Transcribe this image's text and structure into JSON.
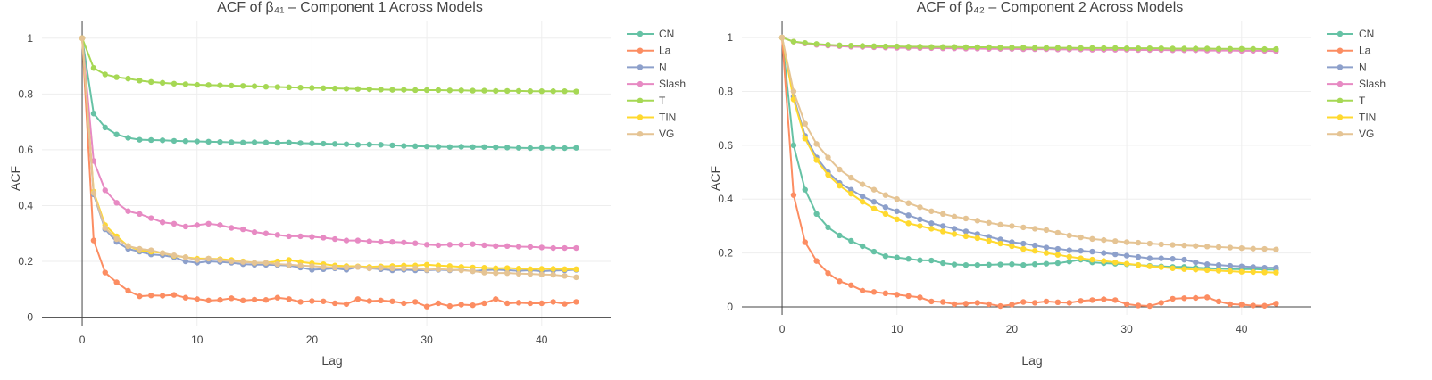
{
  "colors": {
    "CN": "#66c2a5",
    "La": "#fc8d62",
    "N": "#8da0cb",
    "Slash": "#e78ac3",
    "T": "#a6d854",
    "TIN": "#ffd92f",
    "VG": "#e5c494"
  },
  "chart_data": [
    {
      "type": "line",
      "title": "ACF of β₄₁ – Component 1 Across Models",
      "xlabel": "Lag",
      "ylabel": "ACF",
      "xlim": [
        -3.5,
        46
      ],
      "ylim": [
        -0.03,
        1.06
      ],
      "xticks": [
        0,
        10,
        20,
        30,
        40
      ],
      "yticks": [
        0,
        0.2,
        0.4,
        0.6,
        0.8,
        1
      ],
      "ytick_labels": [
        "0",
        "0.2",
        "0.4",
        "0.6",
        "0.8",
        "1"
      ],
      "xtick_labels": [
        "0",
        "10",
        "20",
        "30",
        "40"
      ],
      "legend": "top-right",
      "series": [
        {
          "name": "CN",
          "values": [
            1,
            0.73,
            0.68,
            0.655,
            0.643,
            0.636,
            0.635,
            0.634,
            0.632,
            0.631,
            0.63,
            0.629,
            0.628,
            0.627,
            0.626,
            0.627,
            0.626,
            0.625,
            0.626,
            0.624,
            0.623,
            0.622,
            0.621,
            0.62,
            0.618,
            0.619,
            0.618,
            0.616,
            0.614,
            0.613,
            0.612,
            0.611,
            0.61,
            0.611,
            0.61,
            0.61,
            0.609,
            0.608,
            0.607,
            0.606,
            0.607,
            0.607,
            0.606,
            0.607
          ]
        },
        {
          "name": "La",
          "values": [
            1,
            0.275,
            0.16,
            0.125,
            0.095,
            0.075,
            0.078,
            0.077,
            0.08,
            0.07,
            0.065,
            0.06,
            0.062,
            0.068,
            0.06,
            0.063,
            0.062,
            0.07,
            0.065,
            0.055,
            0.058,
            0.057,
            0.05,
            0.047,
            0.065,
            0.058,
            0.06,
            0.057,
            0.05,
            0.055,
            0.038,
            0.05,
            0.04,
            0.045,
            0.043,
            0.05,
            0.065,
            0.05,
            0.052,
            0.05,
            0.05,
            0.055,
            0.048,
            0.055
          ]
        },
        {
          "name": "N",
          "values": [
            1,
            0.44,
            0.315,
            0.27,
            0.245,
            0.235,
            0.225,
            0.222,
            0.215,
            0.2,
            0.195,
            0.2,
            0.198,
            0.195,
            0.19,
            0.188,
            0.188,
            0.187,
            0.185,
            0.178,
            0.17,
            0.172,
            0.175,
            0.17,
            0.18,
            0.175,
            0.172,
            0.168,
            0.17,
            0.168,
            0.168,
            0.17,
            0.168,
            0.17,
            0.165,
            0.168,
            0.17,
            0.168,
            0.166,
            0.168,
            0.165,
            0.167,
            0.168,
            0.17
          ]
        },
        {
          "name": "Slash",
          "values": [
            1,
            0.56,
            0.455,
            0.41,
            0.38,
            0.37,
            0.355,
            0.34,
            0.335,
            0.325,
            0.33,
            0.335,
            0.33,
            0.32,
            0.315,
            0.305,
            0.3,
            0.295,
            0.29,
            0.29,
            0.288,
            0.285,
            0.28,
            0.275,
            0.275,
            0.272,
            0.27,
            0.27,
            0.268,
            0.265,
            0.26,
            0.258,
            0.26,
            0.26,
            0.262,
            0.258,
            0.255,
            0.255,
            0.253,
            0.252,
            0.25,
            0.248,
            0.248,
            0.248
          ]
        },
        {
          "name": "T",
          "values": [
            1,
            0.893,
            0.87,
            0.86,
            0.855,
            0.848,
            0.843,
            0.84,
            0.837,
            0.835,
            0.833,
            0.832,
            0.831,
            0.83,
            0.829,
            0.828,
            0.826,
            0.825,
            0.824,
            0.823,
            0.822,
            0.821,
            0.82,
            0.819,
            0.818,
            0.817,
            0.816,
            0.815,
            0.815,
            0.814,
            0.814,
            0.814,
            0.813,
            0.813,
            0.812,
            0.812,
            0.811,
            0.811,
            0.811,
            0.81,
            0.81,
            0.81,
            0.81,
            0.809
          ]
        },
        {
          "name": "TIN",
          "values": [
            1,
            0.45,
            0.33,
            0.29,
            0.255,
            0.24,
            0.235,
            0.23,
            0.22,
            0.215,
            0.21,
            0.21,
            0.208,
            0.205,
            0.2,
            0.195,
            0.195,
            0.2,
            0.205,
            0.198,
            0.193,
            0.19,
            0.185,
            0.183,
            0.182,
            0.18,
            0.182,
            0.183,
            0.185,
            0.185,
            0.188,
            0.185,
            0.183,
            0.18,
            0.178,
            0.177,
            0.175,
            0.176,
            0.174,
            0.172,
            0.173,
            0.173,
            0.172,
            0.172
          ]
        },
        {
          "name": "VG",
          "values": [
            1,
            0.445,
            0.32,
            0.28,
            0.255,
            0.245,
            0.24,
            0.23,
            0.222,
            0.215,
            0.205,
            0.21,
            0.205,
            0.2,
            0.198,
            0.195,
            0.195,
            0.19,
            0.188,
            0.185,
            0.183,
            0.18,
            0.178,
            0.178,
            0.18,
            0.175,
            0.177,
            0.175,
            0.175,
            0.175,
            0.17,
            0.172,
            0.17,
            0.168,
            0.165,
            0.16,
            0.158,
            0.158,
            0.156,
            0.155,
            0.153,
            0.152,
            0.148,
            0.143
          ]
        }
      ]
    },
    {
      "type": "line",
      "title": "ACF of β₄₂ – Component 2 Across Models",
      "xlabel": "Lag",
      "ylabel": "ACF",
      "xlim": [
        -3.5,
        46
      ],
      "ylim": [
        -0.03,
        1.06
      ],
      "xticks": [
        0,
        10,
        20,
        30,
        40
      ],
      "yticks": [
        0,
        0.2,
        0.4,
        0.6,
        0.8,
        1
      ],
      "ytick_labels": [
        "0",
        "0.2",
        "0.4",
        "0.6",
        "0.8",
        "1"
      ],
      "xtick_labels": [
        "0",
        "10",
        "20",
        "30",
        "40"
      ],
      "legend": "top-right",
      "series": [
        {
          "name": "CN",
          "values": [
            1,
            0.6,
            0.435,
            0.345,
            0.295,
            0.265,
            0.245,
            0.225,
            0.205,
            0.188,
            0.183,
            0.178,
            0.173,
            0.172,
            0.162,
            0.157,
            0.155,
            0.155,
            0.156,
            0.157,
            0.158,
            0.155,
            0.158,
            0.16,
            0.162,
            0.168,
            0.175,
            0.165,
            0.162,
            0.16,
            0.158,
            0.155,
            0.152,
            0.15,
            0.148,
            0.148,
            0.145,
            0.143,
            0.142,
            0.14,
            0.14,
            0.14,
            0.138,
            0.138
          ]
        },
        {
          "name": "La",
          "values": [
            1,
            0.415,
            0.24,
            0.17,
            0.125,
            0.095,
            0.08,
            0.06,
            0.055,
            0.05,
            0.045,
            0.04,
            0.035,
            0.02,
            0.018,
            0.01,
            0.012,
            0.015,
            0.01,
            0.003,
            0.008,
            0.018,
            0.015,
            0.02,
            0.017,
            0.015,
            0.022,
            0.025,
            0.028,
            0.025,
            0.01,
            0.005,
            0.003,
            0.015,
            0.03,
            0.032,
            0.033,
            0.035,
            0.02,
            0.01,
            0.008,
            0.005,
            0.004,
            0.012
          ]
        },
        {
          "name": "N",
          "values": [
            1,
            0.78,
            0.635,
            0.555,
            0.5,
            0.46,
            0.435,
            0.41,
            0.39,
            0.37,
            0.355,
            0.34,
            0.325,
            0.31,
            0.3,
            0.29,
            0.28,
            0.27,
            0.26,
            0.25,
            0.24,
            0.235,
            0.228,
            0.22,
            0.215,
            0.21,
            0.208,
            0.205,
            0.2,
            0.195,
            0.19,
            0.185,
            0.18,
            0.18,
            0.178,
            0.175,
            0.165,
            0.158,
            0.155,
            0.152,
            0.15,
            0.148,
            0.145,
            0.145
          ]
        },
        {
          "name": "Slash",
          "values": [
            1,
            0.985,
            0.978,
            0.973,
            0.97,
            0.968,
            0.966,
            0.965,
            0.964,
            0.963,
            0.962,
            0.962,
            0.961,
            0.961,
            0.96,
            0.96,
            0.959,
            0.959,
            0.958,
            0.958,
            0.958,
            0.957,
            0.957,
            0.957,
            0.956,
            0.956,
            0.956,
            0.955,
            0.955,
            0.955,
            0.955,
            0.954,
            0.954,
            0.954,
            0.953,
            0.953,
            0.953,
            0.952,
            0.952,
            0.952,
            0.951,
            0.951,
            0.951,
            0.95
          ]
        },
        {
          "name": "T",
          "values": [
            1,
            0.985,
            0.98,
            0.976,
            0.973,
            0.971,
            0.97,
            0.969,
            0.968,
            0.967,
            0.967,
            0.966,
            0.966,
            0.965,
            0.965,
            0.965,
            0.964,
            0.964,
            0.964,
            0.963,
            0.963,
            0.963,
            0.962,
            0.962,
            0.962,
            0.962,
            0.961,
            0.961,
            0.961,
            0.961,
            0.96,
            0.96,
            0.96,
            0.96,
            0.959,
            0.959,
            0.959,
            0.959,
            0.958,
            0.958,
            0.958,
            0.958,
            0.957,
            0.957
          ]
        },
        {
          "name": "TIN",
          "values": [
            1,
            0.77,
            0.625,
            0.545,
            0.49,
            0.45,
            0.42,
            0.39,
            0.365,
            0.345,
            0.325,
            0.31,
            0.3,
            0.29,
            0.28,
            0.27,
            0.262,
            0.255,
            0.245,
            0.235,
            0.225,
            0.215,
            0.208,
            0.2,
            0.193,
            0.186,
            0.18,
            0.175,
            0.17,
            0.165,
            0.16,
            0.155,
            0.15,
            0.147,
            0.143,
            0.14,
            0.138,
            0.136,
            0.134,
            0.132,
            0.13,
            0.129,
            0.128,
            0.127
          ]
        },
        {
          "name": "VG",
          "values": [
            1,
            0.8,
            0.68,
            0.605,
            0.555,
            0.51,
            0.48,
            0.455,
            0.435,
            0.415,
            0.4,
            0.385,
            0.37,
            0.355,
            0.345,
            0.335,
            0.328,
            0.32,
            0.312,
            0.305,
            0.3,
            0.295,
            0.29,
            0.285,
            0.275,
            0.265,
            0.258,
            0.252,
            0.248,
            0.244,
            0.24,
            0.238,
            0.235,
            0.232,
            0.23,
            0.228,
            0.226,
            0.224,
            0.222,
            0.22,
            0.218,
            0.216,
            0.215,
            0.213
          ]
        }
      ]
    }
  ]
}
